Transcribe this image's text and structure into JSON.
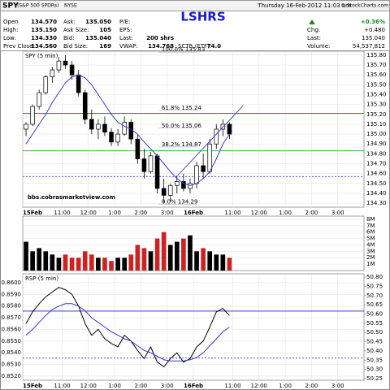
{
  "header": {
    "symbol": "SPY",
    "name": "(S&P 500 SPDRs)",
    "exchange": "NYSE",
    "timestamp": "Thursday 16-Feb-2012 11:03 am",
    "credit": "© StockCharts.com",
    "label": "LSHRS",
    "quotes": [
      [
        {
          "label": "Open",
          "value": "134.570"
        },
        {
          "label": "Ask:",
          "value": "135.050"
        },
        {
          "label": "P/E:"
        }
      ],
      [
        {
          "label": "High:",
          "value": "135.150"
        },
        {
          "label": "Ask Size:",
          "value": "105"
        },
        {
          "label": "EPS:"
        }
      ],
      [
        {
          "label": "Low:",
          "value": "134.330"
        },
        {
          "label": "Bid:",
          "value": "135.040"
        },
        {
          "label": "Last:",
          "value": "200 shrs"
        }
      ],
      [
        {
          "label": "Prev Close:",
          "value": "134.560"
        },
        {
          "label": "Bid Size:",
          "value": "169"
        },
        {
          "label": "VWAP:",
          "value": "134.768"
        },
        {
          "label": "SCTR (ETF):",
          "value": "74.0"
        }
      ]
    ],
    "change": {
      "label": "Chg:",
      "percent": "+0.36%",
      "value": "+0.480",
      "color": "#1a8a1a"
    },
    "last": {
      "label": "Last:",
      "value": "135.040"
    },
    "volume": {
      "label": "Volume:",
      "value": "54,537,812"
    }
  },
  "chart_data": [
    {
      "type": "candlestick",
      "title": "SPY (5 min)",
      "color": "#000000",
      "grid": true,
      "x": [
        0.125,
        0.375,
        0.625,
        0.875,
        1.125,
        1.375,
        1.625,
        1.875,
        2.125,
        2.375,
        2.625,
        2.875,
        3.125,
        3.375,
        3.625,
        3.875,
        4.125,
        4.375,
        4.625,
        4.875,
        5.125,
        5.375,
        5.625,
        5.875,
        6.125,
        6.375,
        6.625,
        6.875,
        7.125,
        7.375,
        7.625,
        7.875
      ],
      "open": [
        135.05,
        135.1,
        135.28,
        135.42,
        135.58,
        135.65,
        135.74,
        135.7,
        135.6,
        135.42,
        135.15,
        135.05,
        135.1,
        135.02,
        134.92,
        135.0,
        135.12,
        134.95,
        134.75,
        134.62,
        134.78,
        134.45,
        134.38,
        134.48,
        134.52,
        134.45,
        134.5,
        134.68,
        134.62,
        134.9,
        135.05,
        135.1
      ],
      "high": [
        135.12,
        135.3,
        135.45,
        135.6,
        135.68,
        135.78,
        135.8,
        135.74,
        135.65,
        135.45,
        135.25,
        135.15,
        135.18,
        135.06,
        135.05,
        135.18,
        135.15,
        135.0,
        134.85,
        134.82,
        134.8,
        134.55,
        134.5,
        134.58,
        134.6,
        134.55,
        134.72,
        134.8,
        134.95,
        135.1,
        135.15,
        135.12
      ],
      "low": [
        134.98,
        135.08,
        135.25,
        135.4,
        135.52,
        135.62,
        135.66,
        135.55,
        135.38,
        135.1,
        135.0,
        134.95,
        134.98,
        134.88,
        134.88,
        134.98,
        134.9,
        134.7,
        134.55,
        134.6,
        134.4,
        134.3,
        134.32,
        134.4,
        134.42,
        134.4,
        134.45,
        134.55,
        134.6,
        134.85,
        134.98,
        134.95
      ],
      "close": [
        135.1,
        135.28,
        135.42,
        135.58,
        135.65,
        135.74,
        135.7,
        135.6,
        135.42,
        135.15,
        135.05,
        135.1,
        135.02,
        134.92,
        135.0,
        135.12,
        134.95,
        134.75,
        134.62,
        134.78,
        134.45,
        134.38,
        134.48,
        134.52,
        134.45,
        134.5,
        134.68,
        134.62,
        134.9,
        135.05,
        135.1,
        135.0
      ],
      "ma": {
        "color": "#3a3ac8",
        "values": [
          134.9,
          135.0,
          135.1,
          135.2,
          135.32,
          135.42,
          135.52,
          135.58,
          135.6,
          135.57,
          135.5,
          135.4,
          135.3,
          135.2,
          135.12,
          135.08,
          135.05,
          135.0,
          134.92,
          134.85,
          134.78,
          134.7,
          134.62,
          134.55,
          134.5,
          134.48,
          134.5,
          134.55,
          134.62,
          134.75,
          134.9,
          135.0
        ]
      },
      "trendline": {
        "color": "#3a3ac8",
        "x": [
          5.9,
          8.4
        ],
        "y": [
          134.58,
          135.29
        ]
      },
      "hlines": [
        {
          "value": 135.21,
          "color": "#cc2222"
        },
        {
          "value": 134.83,
          "color": "#22a022"
        },
        {
          "value": 134.57,
          "color": "#3a3ac8",
          "dash": true
        }
      ],
      "annotations": [
        {
          "text": "100.0% 135.83",
          "value": 135.83
        },
        {
          "text": "61.8% 135.24",
          "value": 135.24
        },
        {
          "text": "50.0% 135.06",
          "value": 135.06
        },
        {
          "text": "38.2% 134.87",
          "value": 134.87
        },
        {
          "text": "0.0% 134.29",
          "value": 134.29
        }
      ],
      "watermark": "bbs.cobrasmarketview.com",
      "xlim": [
        0,
        13
      ],
      "xticks": [
        {
          "value": 0,
          "label": "15Feb"
        },
        {
          "value": 1.5,
          "label": "11:00"
        },
        {
          "value": 2.5,
          "label": "12:00"
        },
        {
          "value": 3.5,
          "label": "1:00"
        },
        {
          "value": 4.5,
          "label": "2:00"
        },
        {
          "value": 5.5,
          "label": "3:00"
        },
        {
          "value": 6.5,
          "label": "16Feb"
        },
        {
          "value": 8,
          "label": "11:00"
        },
        {
          "value": 9,
          "label": "12:00"
        },
        {
          "value": 10,
          "label": "1:00"
        },
        {
          "value": 11,
          "label": "2:00"
        },
        {
          "value": 12,
          "label": "3:00"
        }
      ],
      "ylim": [
        134.26,
        135.84
      ],
      "yticks": [
        {
          "value": 134.3,
          "label": "134.30"
        },
        {
          "value": 134.4,
          "label": "134.40"
        },
        {
          "value": 134.5,
          "label": "134.50"
        },
        {
          "value": 134.6,
          "label": "134.60"
        },
        {
          "value": 134.7,
          "label": "134.70"
        },
        {
          "value": 134.8,
          "label": "134.80"
        },
        {
          "value": 134.9,
          "label": "134.90"
        },
        {
          "value": 135,
          "label": "135.00"
        },
        {
          "value": 135.1,
          "label": "135.10"
        },
        {
          "value": 135.2,
          "label": "135.20"
        },
        {
          "value": 135.3,
          "label": "135.30"
        },
        {
          "value": 135.4,
          "label": "135.40"
        },
        {
          "value": 135.5,
          "label": "135.50"
        },
        {
          "value": 135.6,
          "label": "135.60"
        },
        {
          "value": 135.7,
          "label": "135.70"
        },
        {
          "value": 135.8,
          "label": "135.80"
        }
      ]
    },
    {
      "type": "bar",
      "up_color": "#000000",
      "down_color": "#cc2222",
      "grid": true,
      "values": [
        4500000,
        3000000,
        3500000,
        3000000,
        2500000,
        2000000,
        2500000,
        2000000,
        2000000,
        3000000,
        2500000,
        2000000,
        2000000,
        1500000,
        2000000,
        2000000,
        2500000,
        4000000,
        3500000,
        3000000,
        5000000,
        6000000,
        4000000,
        4500000,
        5000000,
        5500000,
        3000000,
        3500000,
        3000000,
        2500000,
        2500000,
        2000000
      ],
      "ylim": [
        0,
        8500000
      ],
      "yticks": [
        {
          "value": 1000000,
          "label": "1M"
        },
        {
          "value": 2000000,
          "label": "2M"
        },
        {
          "value": 3000000,
          "label": "3M"
        },
        {
          "value": 4000000,
          "label": "4M"
        },
        {
          "value": 5000000,
          "label": "5M"
        },
        {
          "value": 6000000,
          "label": "6M"
        },
        {
          "value": 7000000,
          "label": "7M"
        },
        {
          "value": 8000000,
          "label": "8M"
        }
      ]
    },
    {
      "type": "line",
      "title": "RSP (5 min)",
      "grid": true,
      "series": [
        {
          "color": "#000000",
          "values": [
            0.8565,
            0.8575,
            0.8582,
            0.8588,
            0.8592,
            0.8596,
            0.8594,
            0.859,
            0.858,
            0.8565,
            0.8555,
            0.856,
            0.8552,
            0.8548,
            0.8545,
            0.8555,
            0.855,
            0.8542,
            0.8535,
            0.8545,
            0.8532,
            0.8528,
            0.8535,
            0.854,
            0.8532,
            0.8535,
            0.8545,
            0.855,
            0.8562,
            0.8575,
            0.8578,
            0.8572
          ]
        },
        {
          "color": "#3a3ac8",
          "values": [
            0.8555,
            0.856,
            0.8566,
            0.8572,
            0.8577,
            0.858,
            0.8582,
            0.8582,
            0.858,
            0.8576,
            0.857,
            0.8566,
            0.8562,
            0.8558,
            0.8555,
            0.8552,
            0.855,
            0.8546,
            0.8542,
            0.854,
            0.8537,
            0.8534,
            0.8533,
            0.8533,
            0.8533,
            0.8534,
            0.8536,
            0.854,
            0.8546,
            0.8552,
            0.8558,
            0.8562
          ]
        }
      ],
      "hlines": [
        {
          "value": 0.85757,
          "color": "#3a3ac8"
        },
        {
          "value": 0.85355,
          "color": "#3a3ac8",
          "dash": true
        }
      ],
      "xlim": [
        0,
        13
      ],
      "xticks": [
        {
          "value": 0,
          "label": "15Feb"
        },
        {
          "value": 1.5,
          "label": "11:00"
        },
        {
          "value": 2.5,
          "label": "12:00"
        },
        {
          "value": 3.5,
          "label": "1:00"
        },
        {
          "value": 4.5,
          "label": "2:00"
        },
        {
          "value": 5.5,
          "label": "3:00"
        },
        {
          "value": 6.5,
          "label": "16Feb"
        },
        {
          "value": 8,
          "label": "11:00"
        },
        {
          "value": 9,
          "label": "12:00"
        },
        {
          "value": 10,
          "label": "1:00"
        },
        {
          "value": 11,
          "label": "2:00"
        },
        {
          "value": 12,
          "label": "3:00"
        }
      ],
      "ylim": [
        0.85165,
        0.86076
      ],
      "yticks": [
        {
          "value": 0.852,
          "label": "0.8520"
        },
        {
          "value": 0.853,
          "label": "0.8530"
        },
        {
          "value": 0.854,
          "label": "0.8540"
        },
        {
          "value": 0.855,
          "label": "0.8550"
        },
        {
          "value": 0.856,
          "label": "0.8560"
        },
        {
          "value": 0.857,
          "label": "0.8570"
        },
        {
          "value": 0.858,
          "label": "0.8580"
        },
        {
          "value": 0.859,
          "label": "0.8590"
        },
        {
          "value": 0.86,
          "label": "0.8600"
        }
      ],
      "y2lim": [
        50.241,
        50.818
      ],
      "y2ticks": [
        {
          "value": 50.25,
          "label": "50.25"
        },
        {
          "value": 50.3,
          "label": "50.30"
        },
        {
          "value": 50.35,
          "label": "50.35"
        },
        {
          "value": 50.4,
          "label": "50.40"
        },
        {
          "value": 50.45,
          "label": "50.45"
        },
        {
          "value": 50.5,
          "label": "50.50"
        },
        {
          "value": 50.55,
          "label": "50.55"
        },
        {
          "value": 50.6,
          "label": "50.60"
        },
        {
          "value": 50.65,
          "label": "50.65"
        },
        {
          "value": 50.7,
          "label": "50.70"
        },
        {
          "value": 50.75,
          "label": "50.75"
        },
        {
          "value": 50.8,
          "label": "50.80"
        }
      ]
    }
  ]
}
